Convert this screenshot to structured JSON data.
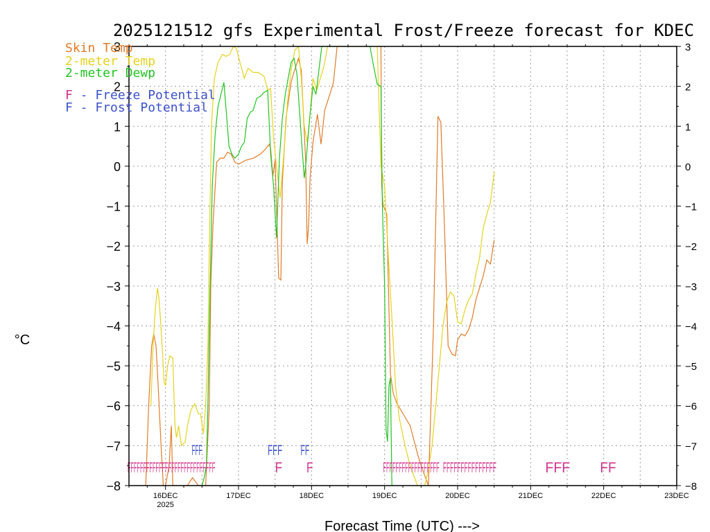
{
  "chart_data": {
    "type": "line",
    "title": "2025121512 gfs Experimental Frost/Freeze forecast for KDEC",
    "ylabel": "°C",
    "xlabel": "Forecast Time (UTC) --->",
    "ylim": [
      -8,
      3
    ],
    "yticks": [
      3,
      2,
      1,
      0,
      -1,
      -2,
      -3,
      -4,
      -5,
      -6,
      -7,
      -8
    ],
    "yticks_right": [
      3,
      2,
      1,
      0,
      -1,
      -2,
      -3,
      -4,
      -5,
      -6,
      -7,
      -8
    ],
    "xlim_days": [
      15.5,
      23.0
    ],
    "xticks": [
      {
        "day": 16,
        "label": "16DEC",
        "sub": "2025"
      },
      {
        "day": 17,
        "label": "17DEC",
        "sub": ""
      },
      {
        "day": 18,
        "label": "18DEC",
        "sub": ""
      },
      {
        "day": 19,
        "label": "19DEC",
        "sub": ""
      },
      {
        "day": 20,
        "label": "20DEC",
        "sub": ""
      },
      {
        "day": 21,
        "label": "21DEC",
        "sub": ""
      },
      {
        "day": 22,
        "label": "22DEC",
        "sub": ""
      },
      {
        "day": 23,
        "label": "23DEC",
        "sub": ""
      }
    ],
    "legend": [
      {
        "label": "Skin Temp",
        "color": "#e07b28"
      },
      {
        "label": "2-meter Temp",
        "color": "#e5d21e"
      },
      {
        "label": "2-meter Dewp",
        "color": "#22c322"
      }
    ],
    "flag_legend": [
      {
        "letter": "F",
        "text": " - Freeze Potential",
        "color": "#d2328c"
      },
      {
        "letter": "F",
        "text": " - Frost Potential",
        "color": "#3c50c8"
      }
    ],
    "series": [
      {
        "name": "Skin Temp",
        "color": "#e07b28",
        "x": [
          15.73,
          15.77,
          15.81,
          15.84,
          15.87,
          15.9,
          15.94,
          15.97,
          16.0,
          16.05,
          16.08,
          16.1,
          16.13,
          16.2,
          16.3,
          16.37,
          16.45,
          16.5,
          16.55,
          16.6,
          16.62,
          16.65,
          16.7,
          16.75,
          16.8,
          16.85,
          16.9,
          16.95,
          17.0,
          17.1,
          17.2,
          17.3,
          17.38,
          17.42,
          17.44,
          17.47,
          17.5,
          17.55,
          17.58,
          17.6,
          17.65,
          17.72,
          17.75,
          17.82,
          17.86,
          17.92,
          17.94,
          17.96,
          17.98,
          18.02,
          18.08,
          18.13,
          18.18,
          18.25,
          18.3,
          18.35,
          18.95,
          18.96,
          18.98,
          19.0,
          19.03,
          19.08,
          19.12,
          19.17,
          19.22,
          19.35,
          19.45,
          19.5,
          19.6,
          19.67,
          19.73,
          19.77,
          19.82,
          19.87,
          19.92,
          19.97,
          20.0,
          20.05,
          20.1,
          20.15,
          20.2,
          20.25,
          20.3,
          20.35,
          20.4,
          20.45,
          20.5
        ],
        "y": [
          -8.0,
          -6.0,
          -4.5,
          -4.2,
          -4.5,
          -5.5,
          -7.0,
          -8.0,
          -8.0,
          -7.5,
          -6.5,
          -8.0,
          -8.0,
          -8.0,
          -8.0,
          -7.8,
          -8.0,
          -8.0,
          -8.0,
          -6.0,
          -3.0,
          -1.5,
          0.1,
          0.2,
          0.2,
          0.35,
          0.3,
          0.1,
          0.05,
          0.15,
          0.2,
          0.3,
          0.45,
          0.55,
          0.45,
          -0.25,
          0.15,
          -2.8,
          -2.85,
          -0.4,
          1.2,
          2.1,
          2.3,
          2.7,
          2.4,
          0.1,
          -1.95,
          -1.5,
          -0.3,
          0.6,
          1.3,
          0.55,
          1.4,
          1.8,
          2.1,
          3.0,
          3.0,
          -0.5,
          -1.0,
          -1.05,
          -1.2,
          -5.2,
          -5.7,
          -5.95,
          -6.1,
          -6.5,
          -7.2,
          -7.5,
          -8.0,
          -4.0,
          1.25,
          1.1,
          -1.5,
          -4.5,
          -4.7,
          -4.75,
          -4.35,
          -4.2,
          -4.25,
          -4.1,
          -3.8,
          -3.35,
          -3.05,
          -2.75,
          -2.35,
          -2.45,
          -1.85
        ]
      },
      {
        "name": "2-meter Temp",
        "color": "#e5d21e",
        "x": [
          15.8,
          15.83,
          15.86,
          15.89,
          15.91,
          15.93,
          15.96,
          15.98,
          16.0,
          16.03,
          16.06,
          16.1,
          16.13,
          16.15,
          16.18,
          16.22,
          16.27,
          16.3,
          16.35,
          16.4,
          16.45,
          16.48,
          16.52,
          16.55,
          16.58,
          16.6,
          16.63,
          16.67,
          16.72,
          16.78,
          16.83,
          16.88,
          16.93,
          16.97,
          17.02,
          17.08,
          17.13,
          17.2,
          17.27,
          17.35,
          17.4,
          17.44,
          17.48,
          17.52,
          17.57,
          17.62,
          17.67,
          17.72,
          17.77,
          17.82,
          17.86,
          17.9,
          17.94,
          17.97,
          18.02,
          18.07,
          18.12,
          18.17,
          18.22,
          18.3,
          18.9,
          18.95,
          19.0,
          19.05,
          19.1,
          19.15,
          19.2,
          19.28,
          19.35,
          19.45,
          19.55,
          19.6,
          19.65,
          19.7,
          19.75,
          19.8,
          19.85,
          19.9,
          19.95,
          20.0,
          20.05,
          20.1,
          20.15,
          20.2,
          20.25,
          20.3,
          20.35,
          20.4,
          20.45,
          20.5
        ],
        "y": [
          -6.0,
          -4.5,
          -3.6,
          -3.05,
          -3.3,
          -3.8,
          -4.7,
          -5.4,
          -5.5,
          -5.0,
          -4.75,
          -4.8,
          -6.5,
          -6.8,
          -6.5,
          -7.0,
          -6.9,
          -6.5,
          -6.1,
          -5.95,
          -6.2,
          -6.2,
          -6.7,
          -6.0,
          -4.5,
          -2.0,
          1.0,
          2.2,
          2.6,
          2.8,
          2.75,
          2.8,
          3.0,
          2.95,
          2.6,
          2.2,
          2.45,
          2.35,
          2.35,
          2.25,
          1.9,
          1.95,
          0.7,
          0.0,
          -0.8,
          0.3,
          1.6,
          2.4,
          2.9,
          3.0,
          2.2,
          1.0,
          0.6,
          1.1,
          2.2,
          1.9,
          2.2,
          2.5,
          3.0,
          3.0,
          3.0,
          0.0,
          -0.5,
          -2.2,
          -3.8,
          -5.5,
          -6.3,
          -7.0,
          -7.5,
          -8.0,
          -8.0,
          -7.6,
          -7.0,
          -6.0,
          -5.0,
          -4.0,
          -3.4,
          -3.15,
          -3.25,
          -3.9,
          -3.95,
          -3.6,
          -3.35,
          -3.2,
          -2.7,
          -2.3,
          -1.55,
          -1.2,
          -0.9,
          -0.15
        ]
      },
      {
        "name": "2-meter Dewp",
        "color": "#22c322",
        "x": [
          16.28,
          16.31,
          16.35,
          16.38,
          16.42,
          16.47,
          16.5,
          16.53,
          16.56,
          16.58,
          16.6,
          16.64,
          16.68,
          16.72,
          16.76,
          16.8,
          16.84,
          16.87,
          16.91,
          16.95,
          17.0,
          17.04,
          17.08,
          17.12,
          17.16,
          17.2,
          17.25,
          17.3,
          17.35,
          17.4,
          17.44,
          17.48,
          17.52,
          17.56,
          17.6,
          17.64,
          17.68,
          17.72,
          17.76,
          17.8,
          17.85,
          17.9,
          17.92,
          17.95,
          17.98,
          18.02,
          18.06,
          18.1,
          18.14,
          18.2,
          18.25,
          18.8,
          18.85,
          18.9,
          18.95,
          18.97,
          19.0,
          19.02,
          19.04,
          19.06,
          19.08,
          19.1,
          19.15
        ],
        "y": [
          -8.0,
          -8.0,
          -8.0,
          -8.0,
          -8.0,
          -8.0,
          -8.0,
          -7.8,
          -7.5,
          -6.0,
          -4.0,
          -0.5,
          0.8,
          1.5,
          1.8,
          2.1,
          1.2,
          0.5,
          0.3,
          0.2,
          0.3,
          0.5,
          0.6,
          1.2,
          1.35,
          1.4,
          1.7,
          1.75,
          1.85,
          1.9,
          0.3,
          -0.5,
          -1.8,
          0.2,
          1.2,
          1.8,
          2.2,
          2.6,
          2.7,
          2.3,
          1.0,
          -0.3,
          0.0,
          0.7,
          1.3,
          2.0,
          1.8,
          2.4,
          3.0,
          3.0,
          3.0,
          3.0,
          2.5,
          2.05,
          2.0,
          -1.0,
          -3.0,
          -6.6,
          -6.9,
          -5.5,
          -5.3,
          -8.0,
          -8.0
        ]
      }
    ],
    "flags": {
      "freeze": {
        "color": "#d2328c",
        "runs": [
          {
            "start": 15.48,
            "end": 16.68,
            "label": "FFFFFFFFFFFFFFFFFFFFFFFFFFFF"
          },
          {
            "start": 17.5,
            "end": 17.6,
            "label": "F"
          },
          {
            "start": 17.93,
            "end": 18.02,
            "label": "F"
          },
          {
            "start": 18.98,
            "end": 19.75,
            "label": "FFFFFFFFFFFFFFFFFF"
          },
          {
            "start": 19.8,
            "end": 20.53,
            "label": "FFFFFFFFFFFFFFF"
          },
          {
            "start": 21.2,
            "end": 21.54,
            "label": "FFF"
          },
          {
            "start": 21.95,
            "end": 22.17,
            "label": "FF"
          }
        ]
      },
      "frost": {
        "color": "#3c50c8",
        "runs": [
          {
            "start": 16.36,
            "end": 16.5,
            "label": "FFF"
          },
          {
            "start": 17.4,
            "end": 17.6,
            "label": "FFF"
          },
          {
            "start": 17.85,
            "end": 17.97,
            "label": "FF"
          }
        ]
      }
    }
  }
}
